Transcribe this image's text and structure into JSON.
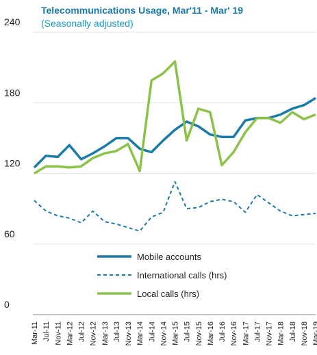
{
  "chart_data": {
    "type": "line",
    "title": "Telecommunications Usage,  Mar'11 - Mar' 19",
    "subtitle": "(Seasonally adjusted)",
    "categories": [
      "Mar-11",
      "Jul-11",
      "Nov-11",
      "Mar-12",
      "Jul-12",
      "Nov-12",
      "Mar-13",
      "Jul-13",
      "Nov-13",
      "Mar-14",
      "Jul-14",
      "Nov-14",
      "Mar-15",
      "Jul-15",
      "Nov-15",
      "Mar-16",
      "Jul-16",
      "Nov-16",
      "Mar-17",
      "Jul-17",
      "Nov-17",
      "Mar-18",
      "Jul-18",
      "Nov-18",
      "Mar-19"
    ],
    "series": [
      {
        "name": "Mobile accounts",
        "color": "#1a7aa8",
        "dash": "solid",
        "values": [
          125,
          135,
          134,
          144,
          132,
          137,
          143,
          150,
          150,
          141,
          138,
          148,
          157,
          164,
          160,
          153,
          151,
          151,
          165,
          167,
          167,
          170,
          175,
          178,
          184
        ]
      },
      {
        "name": "International calls (hrs)",
        "color": "#1a7aa8",
        "dash": "dashed",
        "values": [
          97,
          88,
          84,
          82,
          78,
          88,
          79,
          77,
          74,
          71,
          83,
          87,
          113,
          90,
          91,
          96,
          98,
          96,
          87,
          102,
          95,
          88,
          84,
          85,
          86
        ]
      },
      {
        "name": "Local calls (hrs)",
        "color": "#8cc24a",
        "dash": "solid",
        "values": [
          120,
          126,
          126,
          125,
          126,
          133,
          137,
          139,
          145,
          122,
          199,
          205,
          215,
          148,
          175,
          172,
          127,
          138,
          155,
          167,
          167,
          163,
          172,
          166,
          170
        ]
      }
    ],
    "ylim": [
      0,
      240
    ],
    "yticks": [
      0,
      60,
      120,
      180,
      240
    ],
    "grid": true
  }
}
